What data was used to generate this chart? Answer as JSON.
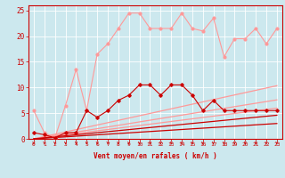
{
  "x": [
    0,
    1,
    2,
    3,
    4,
    5,
    6,
    7,
    8,
    9,
    10,
    11,
    12,
    13,
    14,
    15,
    16,
    17,
    18,
    19,
    20,
    21,
    22,
    23
  ],
  "line1": [
    5.5,
    1.2,
    0.2,
    6.5,
    13.5,
    5.5,
    16.5,
    18.5,
    21.5,
    24.5,
    24.5,
    21.5,
    21.5,
    21.5,
    24.5,
    21.5,
    21.0,
    23.5,
    16.0,
    19.5,
    19.5,
    21.5,
    18.5,
    21.5
  ],
  "line2": [
    1.2,
    0.8,
    0.2,
    1.2,
    1.2,
    5.5,
    4.2,
    5.5,
    7.5,
    8.5,
    10.5,
    10.5,
    8.5,
    10.5,
    10.5,
    8.5,
    5.5,
    7.5,
    5.5,
    5.5,
    5.5,
    5.5,
    5.5,
    5.5
  ],
  "line3_slope": [
    0.0,
    0.45,
    0.9,
    1.35,
    1.8,
    2.25,
    2.7,
    3.15,
    3.6,
    4.05,
    4.5,
    4.95,
    5.4,
    5.85,
    6.3,
    6.75,
    7.2,
    7.65,
    8.1,
    8.55,
    9.0,
    9.45,
    9.9,
    10.35
  ],
  "line4_slope": [
    0.0,
    0.33,
    0.66,
    0.99,
    1.32,
    1.65,
    1.98,
    2.31,
    2.64,
    2.97,
    3.3,
    3.63,
    3.96,
    4.29,
    4.62,
    4.95,
    5.28,
    5.61,
    5.94,
    6.27,
    6.6,
    6.93,
    7.26,
    7.59
  ],
  "line5_slope": [
    0.0,
    0.26,
    0.52,
    0.78,
    1.04,
    1.3,
    1.56,
    1.82,
    2.08,
    2.34,
    2.6,
    2.86,
    3.12,
    3.38,
    3.64,
    3.9,
    4.16,
    4.42,
    4.68,
    4.94,
    5.2,
    5.46,
    5.72,
    5.98
  ],
  "line6_slope": [
    0.0,
    0.2,
    0.4,
    0.6,
    0.8,
    1.0,
    1.2,
    1.4,
    1.6,
    1.8,
    2.0,
    2.2,
    2.4,
    2.6,
    2.8,
    3.0,
    3.2,
    3.4,
    3.6,
    3.8,
    4.0,
    4.2,
    4.4,
    4.6
  ],
  "line7_slope": [
    0.0,
    0.13,
    0.26,
    0.39,
    0.52,
    0.65,
    0.78,
    0.91,
    1.04,
    1.17,
    1.3,
    1.43,
    1.56,
    1.69,
    1.82,
    1.95,
    2.08,
    2.21,
    2.34,
    2.47,
    2.6,
    2.73,
    2.86,
    2.99
  ],
  "color_light": "#ff9999",
  "color_dark": "#cc0000",
  "bg_color": "#cce8ee",
  "grid_color": "#ffffff",
  "xlabel": "Vent moyen/en rafales ( km/h )",
  "ylim": [
    0,
    26
  ],
  "xlim": [
    -0.5,
    23.5
  ]
}
